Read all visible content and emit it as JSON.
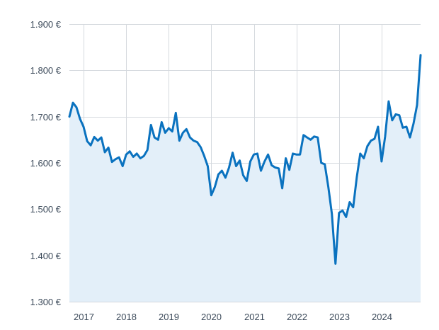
{
  "chart_data": {
    "type": "area",
    "title": "",
    "xlabel": "",
    "ylabel": "",
    "ylim": [
      1300,
      1900
    ],
    "xlim": [
      "2016-09",
      "2024-12"
    ],
    "y_ticks": [
      {
        "value": 1300,
        "label": "1.300 €"
      },
      {
        "value": 1400,
        "label": "1.400 €"
      },
      {
        "value": 1500,
        "label": "1.500 €"
      },
      {
        "value": 1600,
        "label": "1.600 €"
      },
      {
        "value": 1700,
        "label": "1.700 €"
      },
      {
        "value": 1800,
        "label": "1.800 €"
      },
      {
        "value": 1900,
        "label": "1.900 €"
      }
    ],
    "x_ticks": [
      {
        "value": "2017-01",
        "label": "2017"
      },
      {
        "value": "2018-01",
        "label": "2018"
      },
      {
        "value": "2019-01",
        "label": "2019"
      },
      {
        "value": "2020-01",
        "label": "2020"
      },
      {
        "value": "2021-01",
        "label": "2021"
      },
      {
        "value": "2022-01",
        "label": "2022"
      },
      {
        "value": "2023-01",
        "label": "2023"
      },
      {
        "value": "2024-01",
        "label": "2024"
      }
    ],
    "grid": true,
    "colors": {
      "line": "#0a72bf",
      "fill": "#e3eff9",
      "grid": "#d5d9de",
      "text": "#3c4a5a"
    },
    "series": [
      {
        "x": [
          "2016-09",
          "2016-10",
          "2016-11",
          "2016-12",
          "2017-01",
          "2017-02",
          "2017-03",
          "2017-04",
          "2017-05",
          "2017-06",
          "2017-07",
          "2017-08",
          "2017-09",
          "2017-10",
          "2017-11",
          "2017-12",
          "2018-01",
          "2018-02",
          "2018-03",
          "2018-04",
          "2018-05",
          "2018-06",
          "2018-07",
          "2018-08",
          "2018-09",
          "2018-10",
          "2018-11",
          "2018-12",
          "2019-01",
          "2019-02",
          "2019-03",
          "2019-04",
          "2019-05",
          "2019-06",
          "2019-07",
          "2019-08",
          "2019-09",
          "2019-10",
          "2019-11",
          "2019-12",
          "2020-01",
          "2020-02",
          "2020-03",
          "2020-04",
          "2020-05",
          "2020-06",
          "2020-07",
          "2020-08",
          "2020-09",
          "2020-10",
          "2020-11",
          "2020-12",
          "2021-01",
          "2021-02",
          "2021-03",
          "2021-04",
          "2021-05",
          "2021-06",
          "2021-07",
          "2021-08",
          "2021-09",
          "2021-10",
          "2021-11",
          "2021-12",
          "2022-01",
          "2022-02",
          "2022-03",
          "2022-04",
          "2022-05",
          "2022-06",
          "2022-07",
          "2022-08",
          "2022-09",
          "2022-10",
          "2022-11",
          "2022-12",
          "2023-01",
          "2023-02",
          "2023-03",
          "2023-04",
          "2023-05",
          "2023-06",
          "2023-07",
          "2023-08",
          "2023-09",
          "2023-10",
          "2023-11",
          "2023-12",
          "2024-01",
          "2024-02",
          "2024-03",
          "2024-04",
          "2024-05",
          "2024-06",
          "2024-07",
          "2024-08",
          "2024-09",
          "2024-10",
          "2024-11",
          "2024-12"
        ],
        "values": [
          1700,
          1730,
          1720,
          1695,
          1678,
          1647,
          1638,
          1656,
          1648,
          1655,
          1623,
          1633,
          1602,
          1608,
          1612,
          1593,
          1618,
          1625,
          1613,
          1620,
          1610,
          1615,
          1628,
          1682,
          1655,
          1650,
          1688,
          1665,
          1675,
          1668,
          1708,
          1648,
          1665,
          1673,
          1655,
          1648,
          1645,
          1634,
          1615,
          1593,
          1530,
          1548,
          1575,
          1583,
          1568,
          1590,
          1622,
          1593,
          1605,
          1573,
          1561,
          1603,
          1618,
          1620,
          1583,
          1603,
          1618,
          1595,
          1590,
          1588,
          1545,
          1610,
          1585,
          1620,
          1618,
          1618,
          1660,
          1655,
          1650,
          1657,
          1655,
          1600,
          1597,
          1548,
          1490,
          1382,
          1492,
          1497,
          1483,
          1515,
          1504,
          1568,
          1620,
          1610,
          1636,
          1648,
          1652,
          1678,
          1603,
          1657,
          1733,
          1692,
          1705,
          1703,
          1676,
          1678,
          1655,
          1685,
          1725,
          1833
        ]
      }
    ]
  }
}
